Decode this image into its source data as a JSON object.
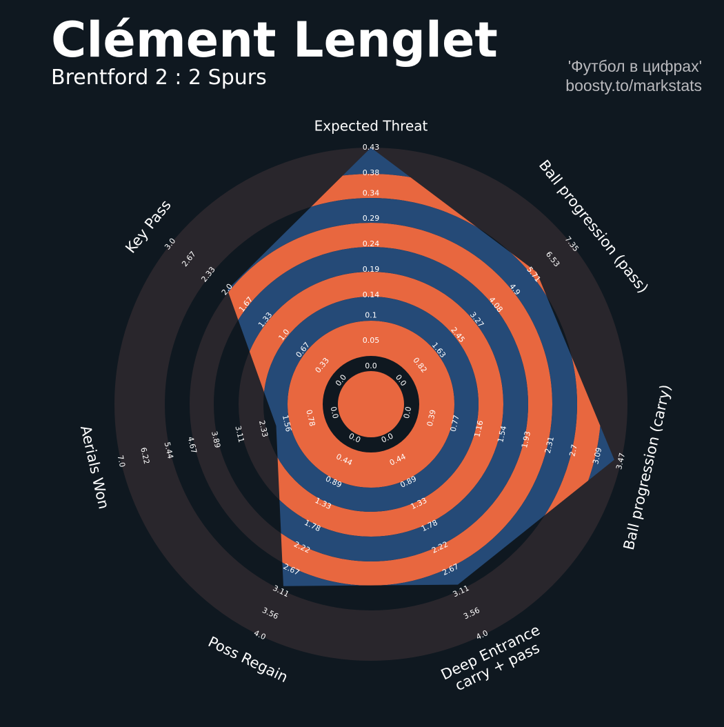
{
  "chart_data": {
    "type": "radar",
    "title": "Clément Lenglet",
    "subtitle": "Brentford 2 : 2 Spurs",
    "annotations": [
      "'Футбол в цифрах'",
      "boosty.to/markstats"
    ],
    "categories": [
      "Expected Threat",
      "Ball progression (pass)",
      "Ball progression (carry)",
      "Deep Entrance\ncarry + pass",
      "Poss Regain",
      "Aerials Won",
      "Key Pass"
    ],
    "values": [
      0.43,
      5.85,
      3.36,
      2.97,
      3.0,
      1.9,
      2.0
    ],
    "axis_ticks": [
      [
        {
          "value": 0,
          "label": "0.0"
        },
        0.05,
        0.1,
        0.14,
        0.19,
        0.24,
        0.29,
        0.34,
        0.38,
        0.43
      ],
      [
        {
          "value": 0,
          "label": "0.0"
        },
        0.82,
        1.63,
        2.45,
        3.27,
        4.08,
        4.9,
        5.71,
        6.53,
        7.35
      ],
      [
        {
          "value": 0,
          "label": "0.0"
        },
        0.39,
        0.77,
        1.16,
        1.54,
        1.93,
        2.31,
        2.7,
        3.09,
        3.47
      ],
      [
        {
          "value": 0,
          "label": "0.0"
        },
        0.44,
        0.89,
        1.33,
        1.78,
        2.22,
        2.67,
        3.11,
        3.56,
        {
          "value": 4,
          "label": "4.0"
        }
      ],
      [
        {
          "value": 0,
          "label": "0.0"
        },
        0.44,
        0.89,
        1.33,
        1.78,
        2.22,
        2.67,
        3.11,
        3.56,
        {
          "value": 4,
          "label": "4.0"
        }
      ],
      [
        {
          "value": 0,
          "label": "0.0"
        },
        0.78,
        1.56,
        2.33,
        3.11,
        3.89,
        4.67,
        5.44,
        6.22,
        {
          "value": 7,
          "label": "7.0"
        }
      ],
      [
        {
          "value": 0,
          "label": "0.0"
        },
        0.33,
        0.67,
        {
          "value": 1,
          "label": "1.0"
        },
        1.33,
        1.67,
        {
          "value": 2,
          "label": "2.0"
        },
        2.33,
        2.67,
        {
          "value": 3,
          "label": "3.0"
        }
      ]
    ],
    "ring_colors": [
      "#e8673f",
      "#254a77"
    ],
    "outer_ring_color": "#29262c"
  }
}
